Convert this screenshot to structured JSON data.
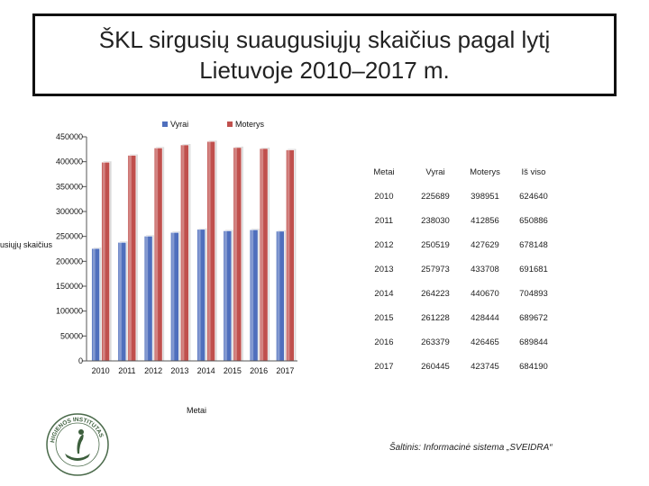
{
  "title": {
    "line1": "ŠKL sirgusių suaugusiųjų skaičius  pagal lytį",
    "line2": "Lietuvoje 2010–2017 m."
  },
  "chart_data": {
    "type": "bar",
    "categories": [
      "2010",
      "2011",
      "2012",
      "2013",
      "2014",
      "2015",
      "2016",
      "2017"
    ],
    "series": [
      {
        "name": "Vyrai",
        "values": [
          225689,
          238030,
          250519,
          257973,
          264223,
          261228,
          263379,
          260445
        ],
        "color": "#4f6fbd"
      },
      {
        "name": "Moterys",
        "values": [
          398951,
          412856,
          427629,
          433708,
          440670,
          428444,
          426465,
          423745
        ],
        "color": "#c0504d"
      }
    ],
    "xlabel": "Metai",
    "ylabel": "usiųjų skaičius",
    "ylim": [
      0,
      450000
    ],
    "yticks": [
      "0",
      "50000",
      "100000",
      "150000",
      "200000",
      "250000",
      "300000",
      "350000",
      "400000",
      "450000"
    ],
    "legend_position": "top",
    "grid": false
  },
  "table": {
    "headers": [
      "Metai",
      "Vyrai",
      "Moterys",
      "Iš viso"
    ],
    "rows": [
      [
        "2010",
        "225689",
        "398951",
        "624640"
      ],
      [
        "2011",
        "238030",
        "412856",
        "650886"
      ],
      [
        "2012",
        "250519",
        "427629",
        "678148"
      ],
      [
        "2013",
        "257973",
        "433708",
        "691681"
      ],
      [
        "2014",
        "264223",
        "440670",
        "704893"
      ],
      [
        "2015",
        "261228",
        "428444",
        "689672"
      ],
      [
        "2016",
        "263379",
        "426465",
        "689844"
      ],
      [
        "2017",
        "260445",
        "423745",
        "684190"
      ]
    ]
  },
  "source": "Šaltinis: Informacinė sistema „SVEIDRA“",
  "logo": {
    "icon": "higienos-institutas-logo",
    "text": "HIGIENOS INSTITUTAS"
  }
}
